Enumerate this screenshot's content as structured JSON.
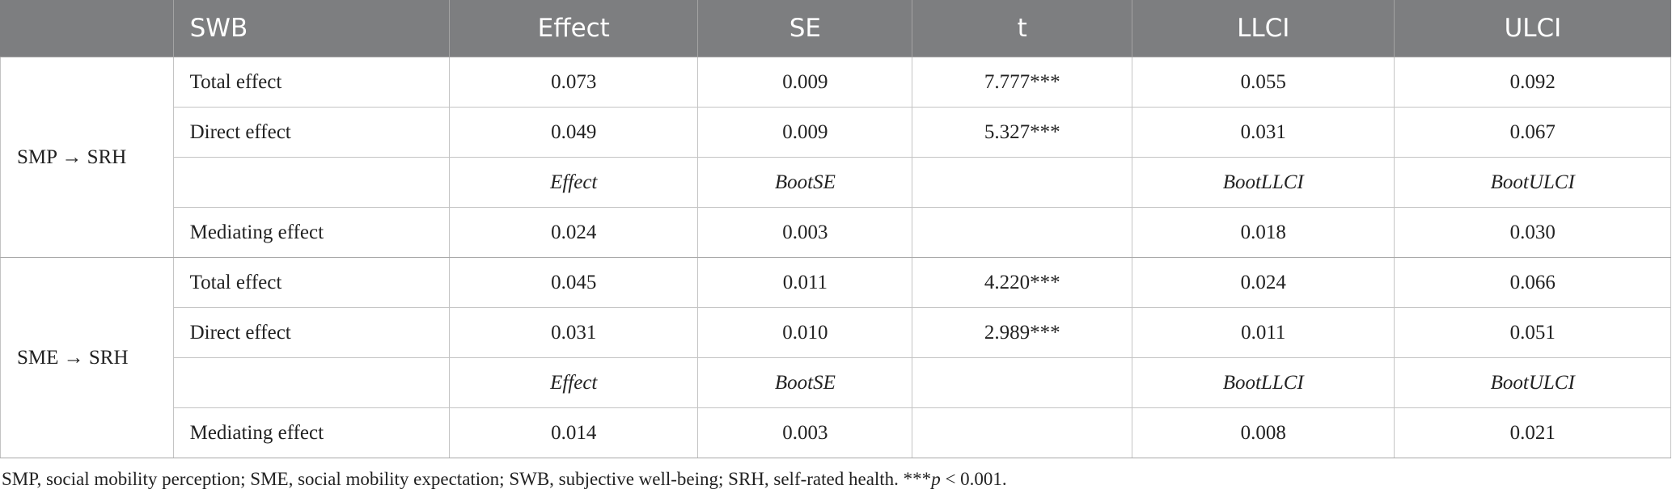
{
  "header": [
    "SWB",
    "Effect",
    "SE",
    "t",
    "LLCI",
    "ULCI"
  ],
  "groups": [
    {
      "label": "SMP → SRH",
      "rows": [
        {
          "label": "Total effect",
          "effect": "0.073",
          "se": "0.009",
          "t": "7.777***",
          "llci": "0.055",
          "ulci": "0.092"
        },
        {
          "label": "Direct effect",
          "effect": "0.049",
          "se": "0.009",
          "t": "5.327***",
          "llci": "0.031",
          "ulci": "0.067"
        },
        {
          "label": "",
          "effect": "Effect",
          "se": "BootSE",
          "t": "",
          "llci": "BootLLCI",
          "ulci": "BootULCI"
        },
        {
          "label": "Mediating effect",
          "effect": "0.024",
          "se": "0.003",
          "t": "",
          "llci": "0.018",
          "ulci": "0.030"
        }
      ]
    },
    {
      "label": "SME → SRH",
      "rows": [
        {
          "label": "Total effect",
          "effect": "0.045",
          "se": "0.011",
          "t": "4.220***",
          "llci": "0.024",
          "ulci": "0.066"
        },
        {
          "label": "Direct effect",
          "effect": "0.031",
          "se": "0.010",
          "t": "2.989***",
          "llci": "0.011",
          "ulci": "0.051"
        },
        {
          "label": "",
          "effect": "Effect",
          "se": "BootSE",
          "t": "",
          "llci": "BootLLCI",
          "ulci": "BootULCI"
        },
        {
          "label": "Mediating effect",
          "effect": "0.014",
          "se": "0.003",
          "t": "",
          "llci": "0.008",
          "ulci": "0.021"
        }
      ]
    }
  ],
  "note": {
    "text": "SMP, social mobility perception; SME, social mobility expectation; SWB, subjective well-being; SRH, self-rated health. ***",
    "p_symbol": "p",
    "p_tail": " < 0.001."
  }
}
